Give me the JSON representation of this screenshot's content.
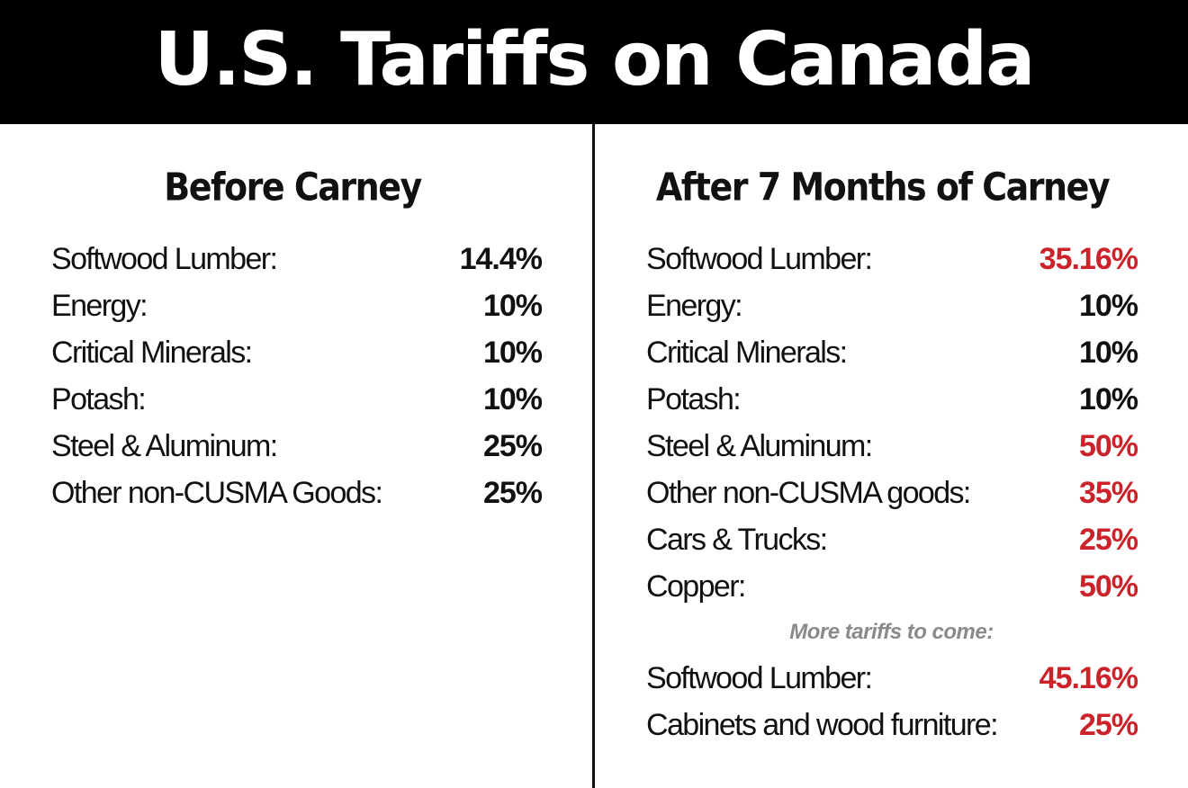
{
  "title": "U.S. Tariffs on Canada",
  "colors": {
    "banner_bg": "#000000",
    "banner_text": "#ffffff",
    "increase_red": "#cc2229",
    "note_gray": "#8a8a8a"
  },
  "before": {
    "heading": "Before Carney",
    "rows": [
      {
        "label": "Softwood Lumber:",
        "value": "14.4%"
      },
      {
        "label": "Energy:",
        "value": "10%"
      },
      {
        "label": "Critical Minerals:",
        "value": "10%"
      },
      {
        "label": "Potash:",
        "value": "10%"
      },
      {
        "label": "Steel & Aluminum:",
        "value": "25%"
      },
      {
        "label": "Other non-CUSMA Goods:",
        "value": "25%"
      }
    ]
  },
  "after": {
    "heading": "After 7 Months of Carney",
    "rows": [
      {
        "label": "Softwood Lumber:",
        "value": "35.16%",
        "color": "red"
      },
      {
        "label": "Energy:",
        "value": "10%",
        "color": "black"
      },
      {
        "label": "Critical Minerals:",
        "value": "10%",
        "color": "black"
      },
      {
        "label": "Potash:",
        "value": "10%",
        "color": "black"
      },
      {
        "label": "Steel & Aluminum:",
        "value": "50%",
        "color": "red"
      },
      {
        "label": "Other non-CUSMA goods:",
        "value": "35%",
        "color": "red"
      },
      {
        "label": "Cars & Trucks:",
        "value": "25%",
        "color": "red"
      },
      {
        "label": "Copper:",
        "value": "50%",
        "color": "red"
      }
    ],
    "more_note": "More tariffs to come:",
    "upcoming": [
      {
        "label": "Softwood Lumber:",
        "value": "45.16%",
        "color": "red"
      },
      {
        "label": "Cabinets and wood furniture:",
        "value": "25%",
        "color": "red"
      }
    ]
  }
}
